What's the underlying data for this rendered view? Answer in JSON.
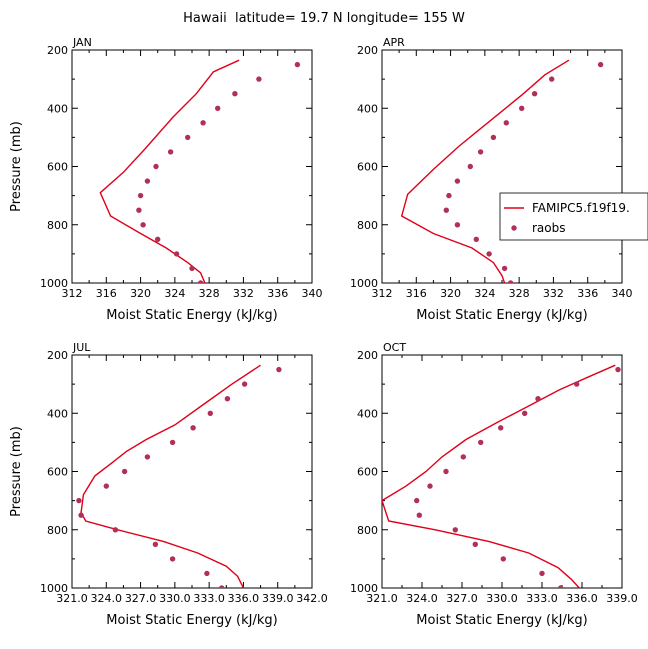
{
  "figure": {
    "title": "Hawaii  latitude= 19.7 N longitude= 155 W"
  },
  "colors": {
    "model": "#e0001a",
    "obs": "#b0305a",
    "axis": "#000000"
  },
  "legend": {
    "model_label": "FAMIPC5.f19f19.",
    "obs_label": "raobs",
    "placement": "inside APR panel, right"
  },
  "chart_data": [
    {
      "type": "line",
      "panel": "JAN",
      "title": "JAN",
      "xlabel": "Moist Static Energy (kJ/kg)",
      "ylabel": "Pressure (mb)",
      "xlim": [
        312,
        340
      ],
      "ylim": [
        1000,
        200
      ],
      "xticks": [
        "312",
        "316",
        "320",
        "324",
        "328",
        "332",
        "336",
        "340"
      ],
      "yticks": [
        "200",
        "400",
        "600",
        "800",
        "1000"
      ],
      "series": [
        {
          "name": "FAMIPC5.f19f19.",
          "style": "line",
          "points": [
            [
              331.5,
              235
            ],
            [
              328.5,
              275
            ],
            [
              326.5,
              350
            ],
            [
              323.8,
              430
            ],
            [
              320.5,
              540
            ],
            [
              318,
              620
            ],
            [
              315.3,
              690
            ],
            [
              316.5,
              770
            ],
            [
              320,
              830
            ],
            [
              323,
              880
            ],
            [
              325.5,
              930
            ],
            [
              327,
              965
            ],
            [
              327.5,
              1000
            ]
          ]
        },
        {
          "name": "raobs",
          "style": "points",
          "points": [
            [
              338.3,
              250
            ],
            [
              333.8,
              300
            ],
            [
              331,
              350
            ],
            [
              329,
              400
            ],
            [
              327.3,
              450
            ],
            [
              325.5,
              500
            ],
            [
              323.5,
              550
            ],
            [
              321.8,
              600
            ],
            [
              320.8,
              650
            ],
            [
              320,
              700
            ],
            [
              319.8,
              750
            ],
            [
              320.3,
              800
            ],
            [
              322,
              850
            ],
            [
              324.2,
              900
            ],
            [
              326,
              950
            ],
            [
              327,
              1000
            ]
          ]
        }
      ]
    },
    {
      "type": "line",
      "panel": "APR",
      "title": "APR",
      "xlabel": "Moist Static Energy (kJ/kg)",
      "ylabel": "",
      "xlim": [
        312,
        340
      ],
      "ylim": [
        1000,
        200
      ],
      "xticks": [
        "312",
        "316",
        "320",
        "324",
        "328",
        "332",
        "336",
        "340"
      ],
      "yticks": [
        "200",
        "400",
        "600",
        "800",
        "1000"
      ],
      "series": [
        {
          "name": "FAMIPC5.f19f19.",
          "style": "line",
          "points": [
            [
              333.8,
              235
            ],
            [
              331,
              285
            ],
            [
              328.5,
              350
            ],
            [
              326,
              410
            ],
            [
              323.5,
              470
            ],
            [
              321,
              530
            ],
            [
              318,
              610
            ],
            [
              315,
              695
            ],
            [
              314.3,
              770
            ],
            [
              318,
              830
            ],
            [
              322.5,
              880
            ],
            [
              325,
              930
            ],
            [
              326,
              975
            ],
            [
              326.3,
              1000
            ]
          ]
        },
        {
          "name": "raobs",
          "style": "points",
          "points": [
            [
              337.5,
              250
            ],
            [
              331.8,
              300
            ],
            [
              329.8,
              350
            ],
            [
              328.3,
              400
            ],
            [
              326.5,
              450
            ],
            [
              325,
              500
            ],
            [
              323.5,
              550
            ],
            [
              322.3,
              600
            ],
            [
              320.8,
              650
            ],
            [
              319.8,
              700
            ],
            [
              319.5,
              750
            ],
            [
              320.8,
              800
            ],
            [
              323,
              850
            ],
            [
              324.5,
              900
            ],
            [
              326.3,
              950
            ],
            [
              327,
              1000
            ]
          ]
        }
      ]
    },
    {
      "type": "line",
      "panel": "JUL",
      "title": "JUL",
      "xlabel": "Moist Static Energy (kJ/kg)",
      "ylabel": "Pressure (mb)",
      "xlim": [
        321.0,
        342.0
      ],
      "ylim": [
        1000,
        200
      ],
      "xticks": [
        "321.0",
        "324.0",
        "327.0",
        "330.0",
        "333.0",
        "336.0",
        "339.0",
        "342.0"
      ],
      "yticks": [
        "200",
        "400",
        "600",
        "800",
        "1000"
      ],
      "series": [
        {
          "name": "FAMIPC5.f19f19.",
          "style": "line",
          "points": [
            [
              337.5,
              235
            ],
            [
              335,
              300
            ],
            [
              332.5,
              370
            ],
            [
              330,
              440
            ],
            [
              327.5,
              490
            ],
            [
              325.8,
              530
            ],
            [
              324.5,
              570
            ],
            [
              323,
              615
            ],
            [
              322,
              680
            ],
            [
              321.8,
              740
            ],
            [
              322.2,
              770
            ],
            [
              325,
              800
            ],
            [
              329,
              840
            ],
            [
              332,
              880
            ],
            [
              334.5,
              925
            ],
            [
              335.5,
              960
            ],
            [
              336,
              1000
            ]
          ]
        },
        {
          "name": "raobs",
          "style": "points",
          "points": [
            [
              339.1,
              250
            ],
            [
              336.1,
              300
            ],
            [
              334.6,
              350
            ],
            [
              333.1,
              400
            ],
            [
              331.6,
              450
            ],
            [
              329.8,
              500
            ],
            [
              327.6,
              550
            ],
            [
              325.6,
              600
            ],
            [
              324,
              650
            ],
            [
              321.6,
              700
            ],
            [
              321.8,
              750
            ],
            [
              324.8,
              800
            ],
            [
              328.3,
              850
            ],
            [
              329.8,
              900
            ],
            [
              332.8,
              950
            ],
            [
              334.1,
              1000
            ]
          ]
        }
      ]
    },
    {
      "type": "line",
      "panel": "OCT",
      "title": "OCT",
      "xlabel": "Moist Static Energy (kJ/kg)",
      "ylabel": "",
      "xlim": [
        321.0,
        339.0
      ],
      "ylim": [
        1000,
        200
      ],
      "xticks": [
        "321.0",
        "324.0",
        "327.0",
        "330.0",
        "333.0",
        "336.0",
        "339.0"
      ],
      "yticks": [
        "200",
        "400",
        "600",
        "800",
        "1000"
      ],
      "series": [
        {
          "name": "FAMIPC5.f19f19.",
          "style": "line",
          "points": [
            [
              338.5,
              235
            ],
            [
              336.5,
              275
            ],
            [
              334.3,
              320
            ],
            [
              332,
              375
            ],
            [
              329.7,
              430
            ],
            [
              327.3,
              490
            ],
            [
              325.5,
              550
            ],
            [
              324.3,
              600
            ],
            [
              322.8,
              650
            ],
            [
              321,
              700
            ],
            [
              321.5,
              770
            ],
            [
              325,
              800
            ],
            [
              329,
              840
            ],
            [
              332,
              880
            ],
            [
              334.2,
              930
            ],
            [
              335.2,
              970
            ],
            [
              335.8,
              1000
            ]
          ]
        },
        {
          "name": "raobs",
          "style": "points",
          "points": [
            [
              338.7,
              250
            ],
            [
              335.6,
              300
            ],
            [
              332.7,
              350
            ],
            [
              331.7,
              400
            ],
            [
              329.9,
              450
            ],
            [
              328.4,
              500
            ],
            [
              327.1,
              550
            ],
            [
              325.8,
              600
            ],
            [
              324.6,
              650
            ],
            [
              323.6,
              700
            ],
            [
              323.8,
              750
            ],
            [
              326.5,
              800
            ],
            [
              328,
              850
            ],
            [
              330.1,
              900
            ],
            [
              333,
              950
            ],
            [
              334.4,
              1000
            ]
          ]
        }
      ]
    }
  ]
}
